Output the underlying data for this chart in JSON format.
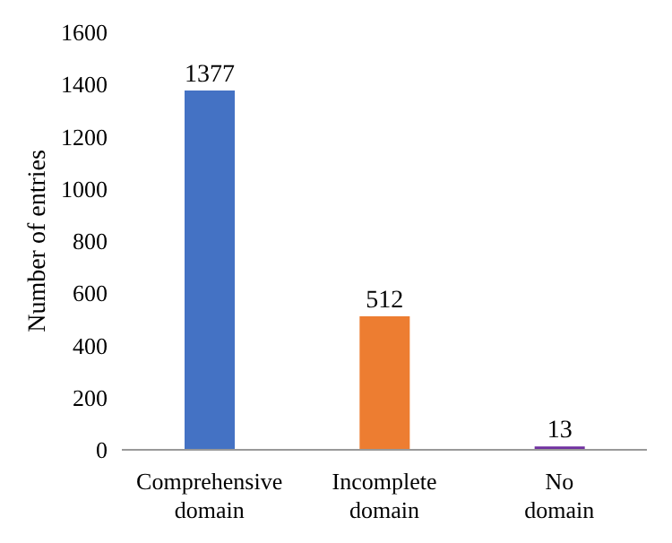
{
  "chart_data": {
    "type": "bar",
    "ylabel": "Number of entries",
    "categories": [
      "Comprehensive domain",
      "Incomplete domain",
      "No domain"
    ],
    "values": [
      1377,
      512,
      13
    ],
    "colors": [
      "#4472c4",
      "#ed7d31",
      "#7030a0"
    ],
    "ylim": [
      0,
      1600
    ],
    "yticks": [
      0,
      200,
      400,
      600,
      800,
      1000,
      1200,
      1400,
      1600
    ],
    "data_labels": true,
    "grid": false
  }
}
